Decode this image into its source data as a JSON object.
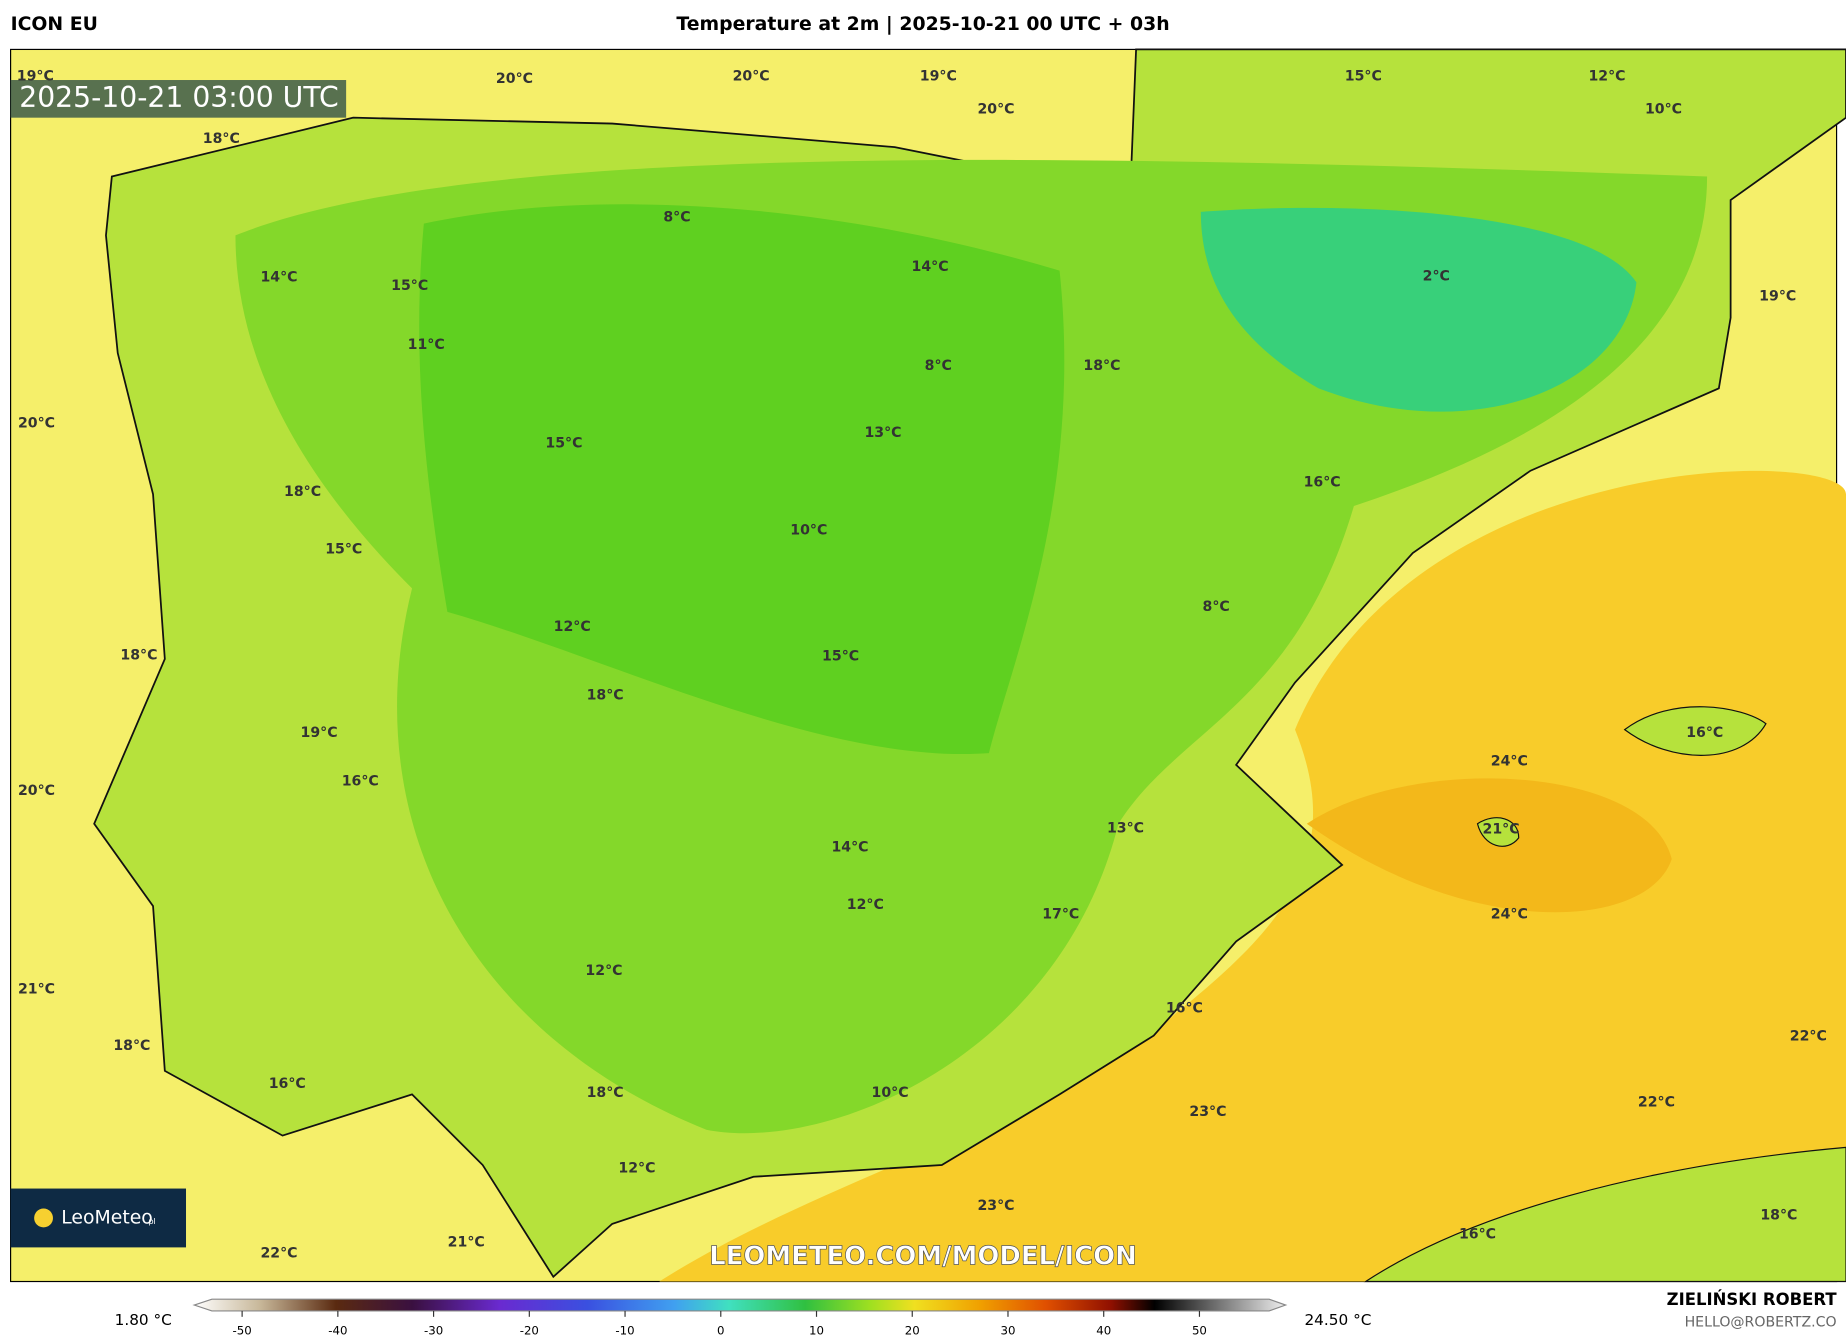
{
  "header": {
    "model": "ICON EU",
    "title": "Temperature at 2m | 2025-10-21 00 UTC + 03h"
  },
  "timestamp": "2025-10-21 03:00 UTC",
  "watermark": "LEOMETEO.COM/MODEL/ICON",
  "logo": {
    "name": "LeoMeteo",
    "suffix": "pl"
  },
  "author": {
    "name": "ZIELIŃSKI ROBERT",
    "email": "HELLO@ROBERTZ.CO"
  },
  "labels": [
    "19°C",
    "20°C",
    "20°C",
    "19°C",
    "20°C",
    "15°C",
    "12°C",
    "10°C",
    "18°C",
    "8°C",
    "14°C",
    "15°C",
    "14°C",
    "2°C",
    "19°C",
    "11°C",
    "8°C",
    "18°C",
    "20°C",
    "13°C",
    "15°C",
    "18°C",
    "16°C",
    "10°C",
    "15°C",
    "8°C",
    "12°C",
    "18°C",
    "15°C",
    "18°C",
    "16°C",
    "19°C",
    "24°C",
    "16°C",
    "20°C",
    "21°C",
    "13°C",
    "14°C",
    "12°C",
    "24°C",
    "17°C",
    "12°C",
    "21°C",
    "16°C",
    "22°C",
    "18°C",
    "16°C",
    "18°C",
    "10°C",
    "22°C",
    "23°C",
    "12°C",
    "23°C",
    "18°C",
    "16°C",
    "22°C",
    "21°C"
  ],
  "colorbar": {
    "min_label": "1.80 °C",
    "max_label": "24.50 °C",
    "lim": [
      -55,
      59
    ],
    "ticks": [
      -50,
      -40,
      -30,
      -20,
      -10,
      0,
      10,
      20,
      30,
      40,
      50
    ]
  }
}
